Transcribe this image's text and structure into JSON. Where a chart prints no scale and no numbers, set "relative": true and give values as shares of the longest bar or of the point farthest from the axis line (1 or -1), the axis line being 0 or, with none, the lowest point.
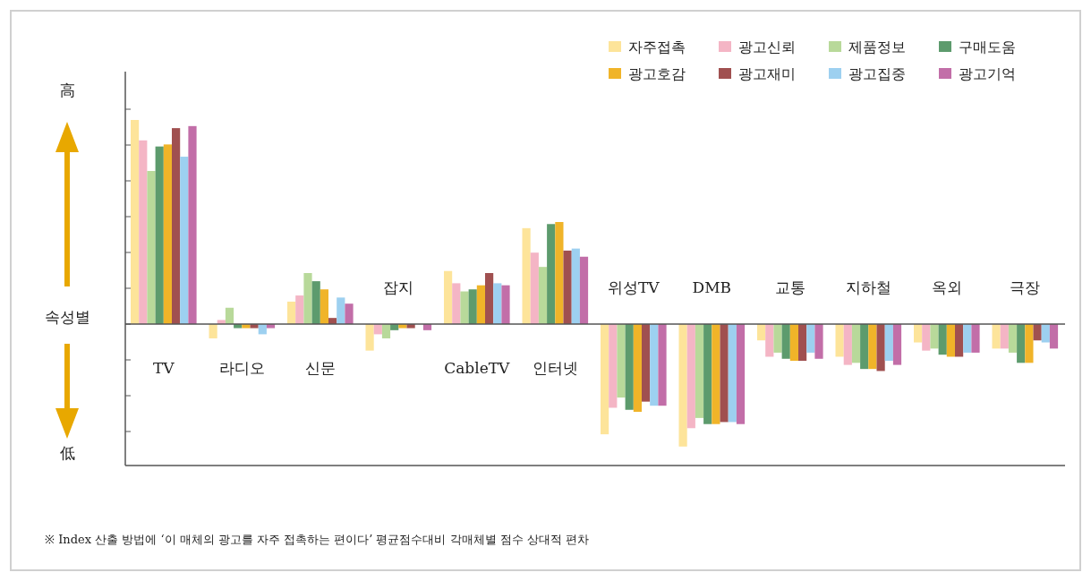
{
  "chart_data": {
    "type": "bar",
    "relative": true,
    "legend": "top right",
    "categories": [
      "TV",
      "라디오",
      "신문",
      "잡지",
      "CableTV",
      "인터넷",
      "위성TV",
      "DMB",
      "교통",
      "지하철",
      "옥외",
      "극장"
    ],
    "series": [
      {
        "name": "자주접촉",
        "color": "#fde49a",
        "values": [
          1.0,
          -0.07,
          0.11,
          -0.13,
          0.26,
          0.47,
          -0.54,
          -0.6,
          -0.08,
          -0.16,
          -0.09,
          -0.12
        ]
      },
      {
        "name": "광고신뢰",
        "color": "#f4b5c5",
        "values": [
          0.9,
          0.02,
          0.14,
          -0.05,
          0.2,
          0.35,
          -0.41,
          -0.51,
          -0.16,
          -0.2,
          -0.13,
          -0.12
        ]
      },
      {
        "name": "제품정보",
        "color": "#b8d99a",
        "values": [
          0.75,
          0.08,
          0.25,
          -0.07,
          0.16,
          0.28,
          -0.36,
          -0.46,
          -0.14,
          -0.19,
          -0.12,
          -0.14
        ]
      },
      {
        "name": "구매도움",
        "color": "#5d9b6d",
        "values": [
          0.87,
          -0.02,
          0.21,
          -0.03,
          0.17,
          0.49,
          -0.42,
          -0.49,
          -0.17,
          -0.22,
          -0.15,
          -0.19
        ]
      },
      {
        "name": "광고호감",
        "color": "#f0b429",
        "values": [
          0.88,
          -0.02,
          0.17,
          -0.02,
          0.19,
          0.5,
          -0.43,
          -0.49,
          -0.18,
          -0.22,
          -0.16,
          -0.19
        ]
      },
      {
        "name": "광고재미",
        "color": "#a05050",
        "values": [
          0.96,
          -0.02,
          0.03,
          -0.02,
          0.25,
          0.36,
          -0.38,
          -0.48,
          -0.18,
          -0.23,
          -0.16,
          -0.08
        ]
      },
      {
        "name": "광고집중",
        "color": "#9dd0f0",
        "values": [
          0.82,
          -0.05,
          0.13,
          0,
          0.2,
          0.37,
          -0.4,
          -0.48,
          -0.14,
          -0.18,
          -0.14,
          -0.09
        ]
      },
      {
        "name": "광고기억",
        "color": "#c26ea8",
        "values": [
          0.97,
          -0.02,
          0.1,
          -0.03,
          0.19,
          0.33,
          -0.4,
          -0.49,
          -0.17,
          -0.2,
          -0.14,
          -0.12
        ]
      }
    ],
    "annotations": [
      "高",
      "속성별",
      "低",
      "※ Index 산출 방법에 ‘이 매체의 광고를 자주 접촉하는 편이다’ 평균점수대비 각매체별 점수 상대적 편차"
    ]
  }
}
